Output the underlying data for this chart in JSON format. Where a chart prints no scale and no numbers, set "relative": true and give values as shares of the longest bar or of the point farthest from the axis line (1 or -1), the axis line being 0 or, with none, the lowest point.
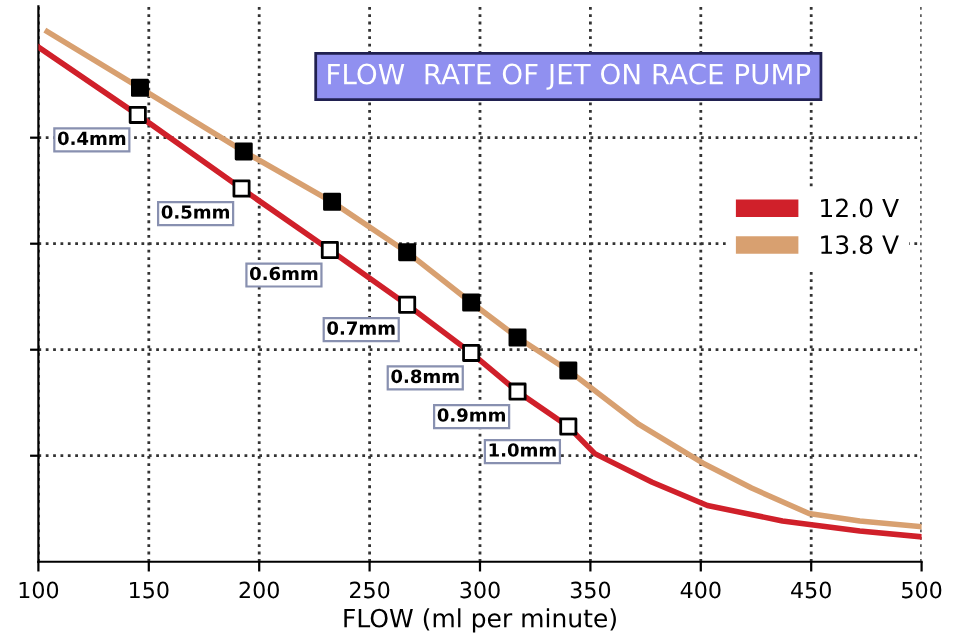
{
  "chart_data": {
    "type": "line",
    "title": "FLOW  RATE OF JET ON RACE PUMP",
    "xlabel": "FLOW (ml per minute)",
    "relative": true,
    "xlim": [
      100,
      500
    ],
    "xticks": [
      100,
      150,
      200,
      250,
      300,
      350,
      400,
      450,
      500
    ],
    "tick_labels": "x",
    "grid": true,
    "legend": "right",
    "line_style": "solid",
    "marker": "none",
    "series": [
      {
        "name": "12.0 V",
        "color": "#d0202a",
        "x": [
          100,
          145,
          192,
          232,
          267,
          296,
          317,
          340,
          352,
          378,
          403,
          437,
          472,
          500
        ],
        "values": [
          0.971,
          0.843,
          0.704,
          0.588,
          0.485,
          0.394,
          0.321,
          0.255,
          0.204,
          0.15,
          0.106,
          0.077,
          0.058,
          0.047
        ]
      },
      {
        "name": "13.8 V",
        "color": "#d8a070",
        "x": [
          104,
          146,
          193,
          233,
          267,
          296,
          317,
          340,
          372,
          401,
          423,
          449,
          472,
          500
        ],
        "values": [
          1.0,
          0.894,
          0.774,
          0.679,
          0.584,
          0.489,
          0.423,
          0.361,
          0.259,
          0.186,
          0.139,
          0.091,
          0.077,
          0.066
        ]
      },
      {
        "type": "scatter",
        "marker": "square",
        "color": "#ffffff",
        "x": [
          145,
          192,
          232,
          267,
          296,
          317,
          340
        ],
        "values": [
          0.843,
          0.704,
          0.588,
          0.485,
          0.394,
          0.321,
          0.255
        ]
      },
      {
        "type": "scatter",
        "marker": "square",
        "color": "#000000",
        "x": [
          146,
          193,
          233,
          267,
          296,
          317,
          340
        ],
        "values": [
          0.894,
          0.774,
          0.679,
          0.584,
          0.489,
          0.423,
          0.361
        ]
      }
    ],
    "annotations": [
      {
        "text": "0.4mm",
        "x": 145,
        "y": 0.843
      },
      {
        "text": "0.5mm",
        "x": 192,
        "y": 0.704
      },
      {
        "text": "0.6mm",
        "x": 232,
        "y": 0.588
      },
      {
        "text": "0.7mm",
        "x": 267,
        "y": 0.485
      },
      {
        "text": "0.8mm",
        "x": 296,
        "y": 0.394
      },
      {
        "text": "0.9mm",
        "x": 317,
        "y": 0.321
      },
      {
        "text": "1.0mm",
        "x": 340,
        "y": 0.255
      }
    ]
  }
}
